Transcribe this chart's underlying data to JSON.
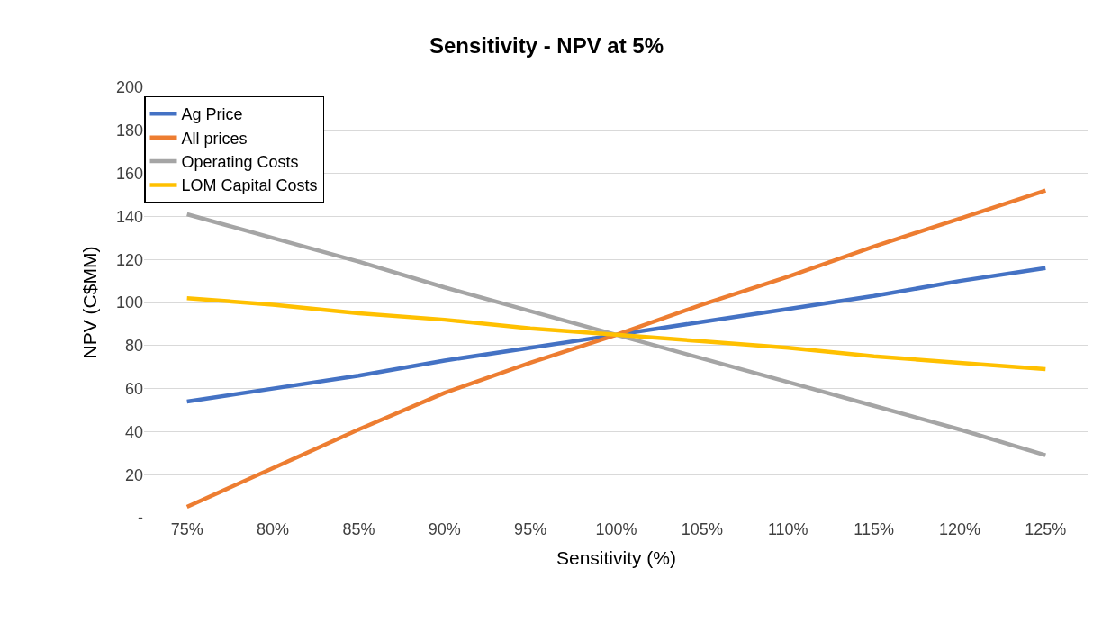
{
  "chart_data": {
    "type": "line",
    "title": "Sensitivity - NPV at 5%",
    "xlabel": "Sensitivity (%)",
    "ylabel": "NPV (C$MM)",
    "categories": [
      "75%",
      "80%",
      "85%",
      "90%",
      "95%",
      "100%",
      "105%",
      "110%",
      "115%",
      "120%",
      "125%"
    ],
    "series": [
      {
        "name": "Ag Price",
        "color": "#4472c4",
        "values": [
          54,
          60,
          66,
          73,
          79,
          85,
          91,
          97,
          103,
          110,
          116
        ]
      },
      {
        "name": "All prices",
        "color": "#ed7d31",
        "values": [
          5,
          23,
          41,
          58,
          72,
          85,
          99,
          112,
          126,
          139,
          152
        ]
      },
      {
        "name": "Operating Costs",
        "color": "#a5a5a5",
        "values": [
          141,
          130,
          119,
          107,
          96,
          85,
          74,
          63,
          52,
          41,
          29
        ]
      },
      {
        "name": "LOM Capital Costs",
        "color": "#ffc000",
        "values": [
          102,
          99,
          95,
          92,
          88,
          85,
          82,
          79,
          75,
          72,
          69
        ]
      }
    ],
    "ylim": [
      0,
      200
    ],
    "yticks": [
      {
        "value": 0,
        "label": "-"
      },
      20,
      40,
      60,
      80,
      100,
      120,
      140,
      160,
      180,
      200
    ],
    "grid": "y",
    "legend": "top left",
    "marker": "none",
    "line_style": "solid"
  }
}
